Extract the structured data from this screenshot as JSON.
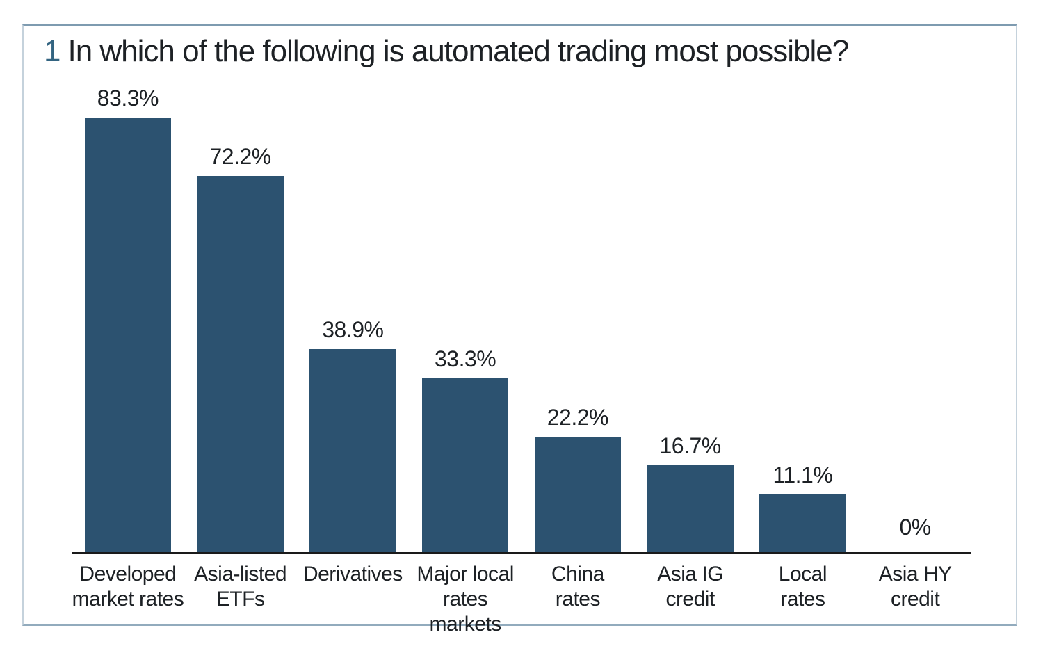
{
  "chart_data": {
    "type": "bar",
    "title_number": "1",
    "title": "In which of the following is automated trading most possible?",
    "categories": [
      "Developed\nmarket rates",
      "Asia-listed\nETFs",
      "Derivatives",
      "Major local\nrates markets",
      "China\nrates",
      "Asia IG\ncredit",
      "Local\nrates",
      "Asia HY\ncredit"
    ],
    "values": [
      83.3,
      72.2,
      38.9,
      33.3,
      22.2,
      16.7,
      11.1,
      0
    ],
    "value_labels": [
      "83.3%",
      "72.2%",
      "38.9%",
      "33.3%",
      "22.2%",
      "16.7%",
      "11.1%",
      "0%"
    ],
    "xlabel": "",
    "ylabel": "",
    "ylim": [
      0,
      100
    ],
    "grid": false,
    "legend": false,
    "value_label_position": "above-bar",
    "colors": {
      "bar": "#2c5270",
      "title_number": "#336481",
      "text": "#1d2125",
      "axis_line": "#1a1a1a",
      "card_border": "#c5d2dc",
      "card_border_top": "#7e9bb0",
      "background": "#ffffff"
    }
  }
}
